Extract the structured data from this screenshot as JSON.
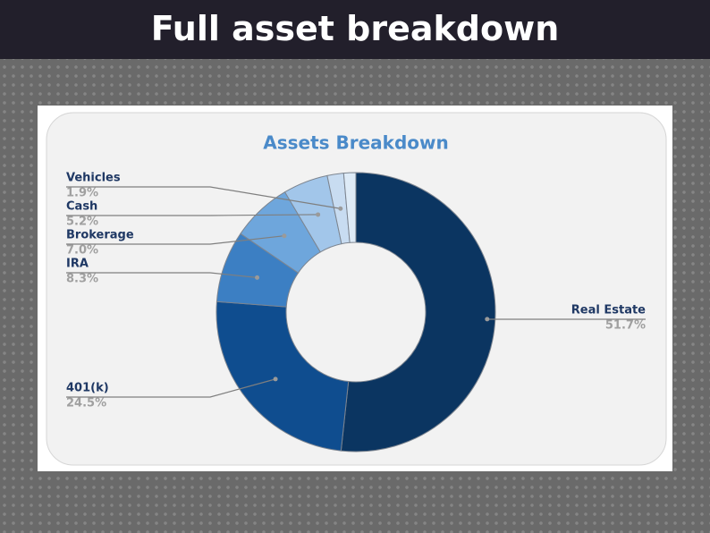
{
  "header": {
    "title": "Full asset breakdown"
  },
  "chart_data": {
    "type": "donut",
    "title": "Assets Breakdown",
    "categories": [
      "Real Estate",
      "401(k)",
      "IRA",
      "Brokerage",
      "Cash",
      "Vehicles",
      null
    ],
    "values": [
      51.7,
      24.5,
      8.3,
      7.0,
      5.2,
      1.9,
      1.4
    ],
    "value_labels": [
      "51.7%",
      "24.5%",
      "8.3%",
      "7.0%",
      "5.2%",
      "1.9%",
      null
    ],
    "colors": [
      "#0b3561",
      "#0f4d8f",
      "#3c7fc3",
      "#6ea6dc",
      "#a2c6ea",
      "#c8dcf1",
      "#deebf7"
    ]
  }
}
